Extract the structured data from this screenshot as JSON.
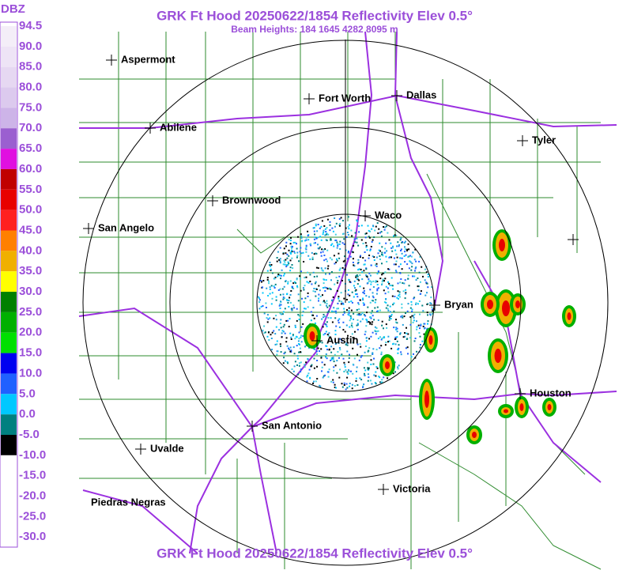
{
  "title": "GRK Ft Hood 20250622/1854 Reflectivity Elev 0.5°",
  "subtitle": "Beam Heights: 184 1645 4282 8095 m",
  "footer": "GRK Ft Hood 20250622/1854 Reflectivity Elev 0.5°",
  "legend": {
    "unit": "DBZ",
    "labels": [
      "94.5",
      "90.0",
      "85.0",
      "80.0",
      "75.0",
      "70.0",
      "65.0",
      "60.0",
      "55.0",
      "50.0",
      "45.0",
      "40.0",
      "35.0",
      "30.0",
      "25.0",
      "20.0",
      "15.0",
      "10.0",
      "5.0",
      "0.0",
      "-5.0",
      "-10.0",
      "-15.0",
      "-20.0",
      "-25.0",
      "-30.0"
    ]
  },
  "cities": [
    "Aspermont",
    "Abilene",
    "Fort Worth",
    "Dallas",
    "Tyler",
    "Brownwood",
    "Waco",
    "San Angelo",
    "Bryan",
    "Austin",
    "Houston",
    "San Antonio",
    "Uvalde",
    "Victoria",
    "Piedras Negras"
  ]
}
